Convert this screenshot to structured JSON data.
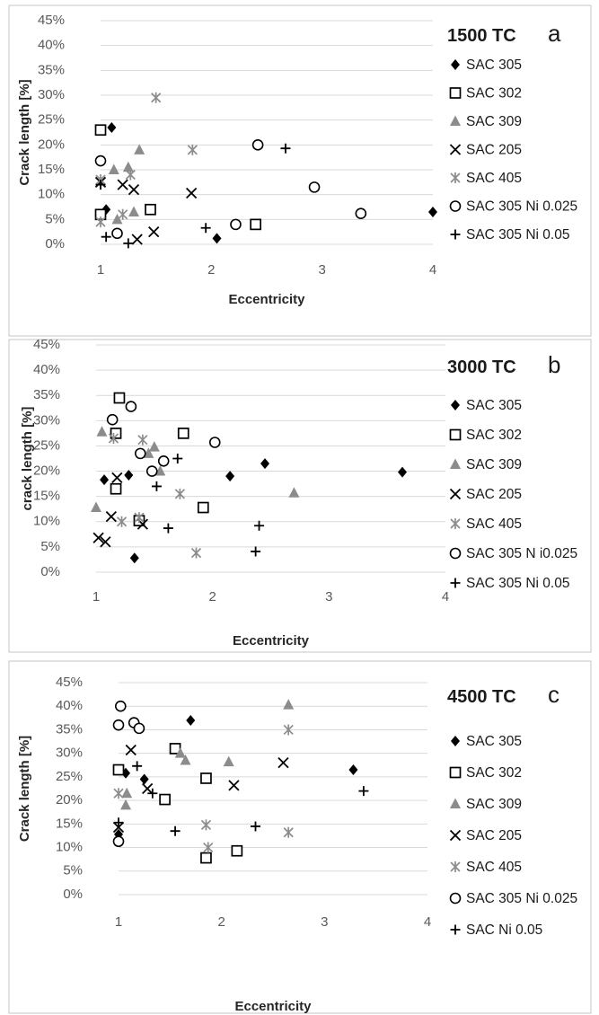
{
  "chart_data": [
    {
      "type": "scatter",
      "panel_title": "1500 TC",
      "panel_letter": "a",
      "xlabel": "Eccentricity",
      "ylabel": "Crack length [%]",
      "xlim": [
        1,
        4
      ],
      "ylim": [
        0,
        45
      ],
      "x_ticks": [
        "1",
        "2",
        "3",
        "4"
      ],
      "y_ticks": [
        "0%",
        "5%",
        "10%",
        "15%",
        "20%",
        "25%",
        "30%",
        "35%",
        "40%",
        "45%"
      ],
      "grid": true,
      "legend_position": "right",
      "series": [
        {
          "name": "SAC 305",
          "marker": "diamond",
          "color": "#000000",
          "points": [
            [
              1.1,
              23.5
            ],
            [
              1.05,
              7
            ],
            [
              2.05,
              1.2
            ],
            [
              4.0,
              6.5
            ]
          ]
        },
        {
          "name": "SAC 302",
          "marker": "square",
          "color": "#000000",
          "points": [
            [
              1.0,
              23
            ],
            [
              1.0,
              6
            ],
            [
              1.45,
              7
            ],
            [
              2.4,
              4
            ]
          ]
        },
        {
          "name": "SAC 309",
          "marker": "triangle",
          "color": "#8c8c8c",
          "points": [
            [
              1.12,
              15
            ],
            [
              1.25,
              15.5
            ],
            [
              1.35,
              19
            ],
            [
              1.15,
              5
            ],
            [
              1.3,
              6.5
            ]
          ]
        },
        {
          "name": "SAC 205",
          "marker": "x",
          "color": "#000000",
          "points": [
            [
              1.0,
              12.5
            ],
            [
              1.2,
              12
            ],
            [
              1.3,
              11
            ],
            [
              1.82,
              10.3
            ],
            [
              1.48,
              2.5
            ],
            [
              1.33,
              1
            ]
          ]
        },
        {
          "name": "SAC 405",
          "marker": "star",
          "color": "#8c8c8c",
          "points": [
            [
              1.5,
              29.5
            ],
            [
              1.83,
              19
            ],
            [
              1.0,
              13
            ],
            [
              1.27,
              14
            ],
            [
              1.0,
              4.5
            ],
            [
              1.2,
              6
            ]
          ]
        },
        {
          "name": "SAC 305 Ni 0.025",
          "marker": "circle",
          "color": "#000000",
          "points": [
            [
              1.0,
              16.8
            ],
            [
              2.42,
              20
            ],
            [
              2.93,
              11.5
            ],
            [
              3.35,
              6.2
            ],
            [
              2.22,
              4
            ],
            [
              1.15,
              2.2
            ]
          ]
        },
        {
          "name": "SAC 305 Ni 0.05",
          "marker": "plus",
          "color": "#000000",
          "points": [
            [
              2.67,
              19.3
            ],
            [
              1.95,
              3.3
            ],
            [
              1.05,
              1.5
            ],
            [
              1.25,
              0.2
            ],
            [
              1.0,
              12
            ]
          ]
        }
      ]
    },
    {
      "type": "scatter",
      "panel_title": "3000 TC",
      "panel_letter": "b",
      "xlabel": "Eccentricity",
      "ylabel": "crack length [%]",
      "xlim": [
        1,
        4
      ],
      "ylim": [
        0,
        45
      ],
      "x_ticks": [
        "1",
        "2",
        "3",
        "4"
      ],
      "y_ticks": [
        "0%",
        "5%",
        "10%",
        "15%",
        "20%",
        "25%",
        "30%",
        "35%",
        "40%",
        "45%"
      ],
      "grid": true,
      "legend_position": "right",
      "series": [
        {
          "name": "SAC 305",
          "marker": "diamond",
          "color": "#000000",
          "points": [
            [
              1.07,
              18.3
            ],
            [
              1.28,
              19.2
            ],
            [
              2.15,
              19
            ],
            [
              2.45,
              21.5
            ],
            [
              3.63,
              19.8
            ],
            [
              1.33,
              2.8
            ]
          ]
        },
        {
          "name": "SAC 302",
          "marker": "square",
          "color": "#000000",
          "points": [
            [
              1.2,
              34.5
            ],
            [
              1.17,
              27.5
            ],
            [
              1.75,
              27.5
            ],
            [
              1.17,
              16.5
            ],
            [
              1.37,
              10.2
            ],
            [
              1.92,
              12.8
            ]
          ]
        },
        {
          "name": "SAC 309",
          "marker": "triangle",
          "color": "#8c8c8c",
          "points": [
            [
              1.05,
              27.8
            ],
            [
              1.5,
              24.8
            ],
            [
              1.45,
              23.5
            ],
            [
              1.55,
              20
            ],
            [
              2.7,
              15.7
            ],
            [
              1.0,
              12.8
            ]
          ]
        },
        {
          "name": "SAC 205",
          "marker": "x",
          "color": "#000000",
          "points": [
            [
              1.18,
              18.7
            ],
            [
              1.13,
              11
            ],
            [
              1.4,
              9.5
            ],
            [
              1.02,
              6.8
            ],
            [
              1.08,
              6
            ]
          ]
        },
        {
          "name": "SAC 405",
          "marker": "star",
          "color": "#8c8c8c",
          "points": [
            [
              1.15,
              26.5
            ],
            [
              1.4,
              26.2
            ],
            [
              1.72,
              15.5
            ],
            [
              1.22,
              10
            ],
            [
              1.37,
              10.8
            ],
            [
              1.86,
              3.8
            ]
          ]
        },
        {
          "name": "SAC 305 N i0.025",
          "marker": "circle",
          "color": "#000000",
          "points": [
            [
              1.3,
              32.8
            ],
            [
              1.14,
              30.2
            ],
            [
              2.02,
              25.7
            ],
            [
              1.38,
              23.5
            ],
            [
              1.58,
              22
            ],
            [
              1.48,
              20
            ]
          ]
        },
        {
          "name": "SAC 305 Ni 0.05",
          "marker": "plus",
          "color": "#000000",
          "points": [
            [
              1.7,
              22.5
            ],
            [
              1.52,
              17
            ],
            [
              1.62,
              8.7
            ],
            [
              2.4,
              9.2
            ],
            [
              2.37,
              4.1
            ]
          ]
        }
      ]
    },
    {
      "type": "scatter",
      "panel_title": "4500 TC",
      "panel_letter": "c",
      "xlabel": "Eccentricity",
      "ylabel": "Crack length [%]",
      "xlim": [
        1,
        4
      ],
      "ylim": [
        0,
        45
      ],
      "x_ticks": [
        "1",
        "2",
        "3",
        "4"
      ],
      "y_ticks": [
        "0%",
        "5%",
        "10%",
        "15%",
        "20%",
        "25%",
        "30%",
        "35%",
        "40%",
        "45%"
      ],
      "grid": true,
      "legend_position": "right",
      "series": [
        {
          "name": "SAC 305",
          "marker": "diamond",
          "color": "#000000",
          "points": [
            [
              1.7,
              37
            ],
            [
              3.28,
              26.5
            ],
            [
              1.07,
              25.8
            ],
            [
              1.25,
              24.5
            ],
            [
              1.0,
              12.8
            ]
          ]
        },
        {
          "name": "SAC 302",
          "marker": "square",
          "color": "#000000",
          "points": [
            [
              1.55,
              31
            ],
            [
              1.0,
              26.5
            ],
            [
              1.85,
              24.7
            ],
            [
              1.45,
              20.2
            ],
            [
              2.15,
              9.3
            ],
            [
              1.85,
              7.8
            ]
          ]
        },
        {
          "name": "SAC 309",
          "marker": "triangle",
          "color": "#8c8c8c",
          "points": [
            [
              2.65,
              40.3
            ],
            [
              1.6,
              30
            ],
            [
              1.65,
              28.5
            ],
            [
              2.07,
              28.2
            ],
            [
              1.08,
              21.5
            ],
            [
              1.07,
              19
            ]
          ]
        },
        {
          "name": "SAC 205",
          "marker": "x",
          "color": "#000000",
          "points": [
            [
              1.12,
              30.7
            ],
            [
              2.6,
              28
            ],
            [
              2.12,
              23.2
            ],
            [
              1.28,
              22.5
            ],
            [
              1.0,
              14.3
            ]
          ]
        },
        {
          "name": "SAC 405",
          "marker": "star",
          "color": "#8c8c8c",
          "points": [
            [
              2.65,
              35
            ],
            [
              1.0,
              21.5
            ],
            [
              1.85,
              14.8
            ],
            [
              1.87,
              10
            ],
            [
              2.65,
              13.2
            ]
          ]
        },
        {
          "name": "SAC 305 Ni 0.025",
          "marker": "circle",
          "color": "#000000",
          "points": [
            [
              1.02,
              40
            ],
            [
              1.0,
              36
            ],
            [
              1.15,
              36.5
            ],
            [
              1.2,
              35.3
            ],
            [
              1.0,
              11.3
            ]
          ]
        },
        {
          "name": "SAC Ni 0.05",
          "marker": "plus",
          "color": "#000000",
          "points": [
            [
              1.18,
              27.3
            ],
            [
              1.33,
              21.5
            ],
            [
              3.38,
              22
            ],
            [
              1.0,
              15.3
            ],
            [
              2.33,
              14.5
            ],
            [
              1.55,
              13.5
            ]
          ]
        }
      ]
    }
  ]
}
